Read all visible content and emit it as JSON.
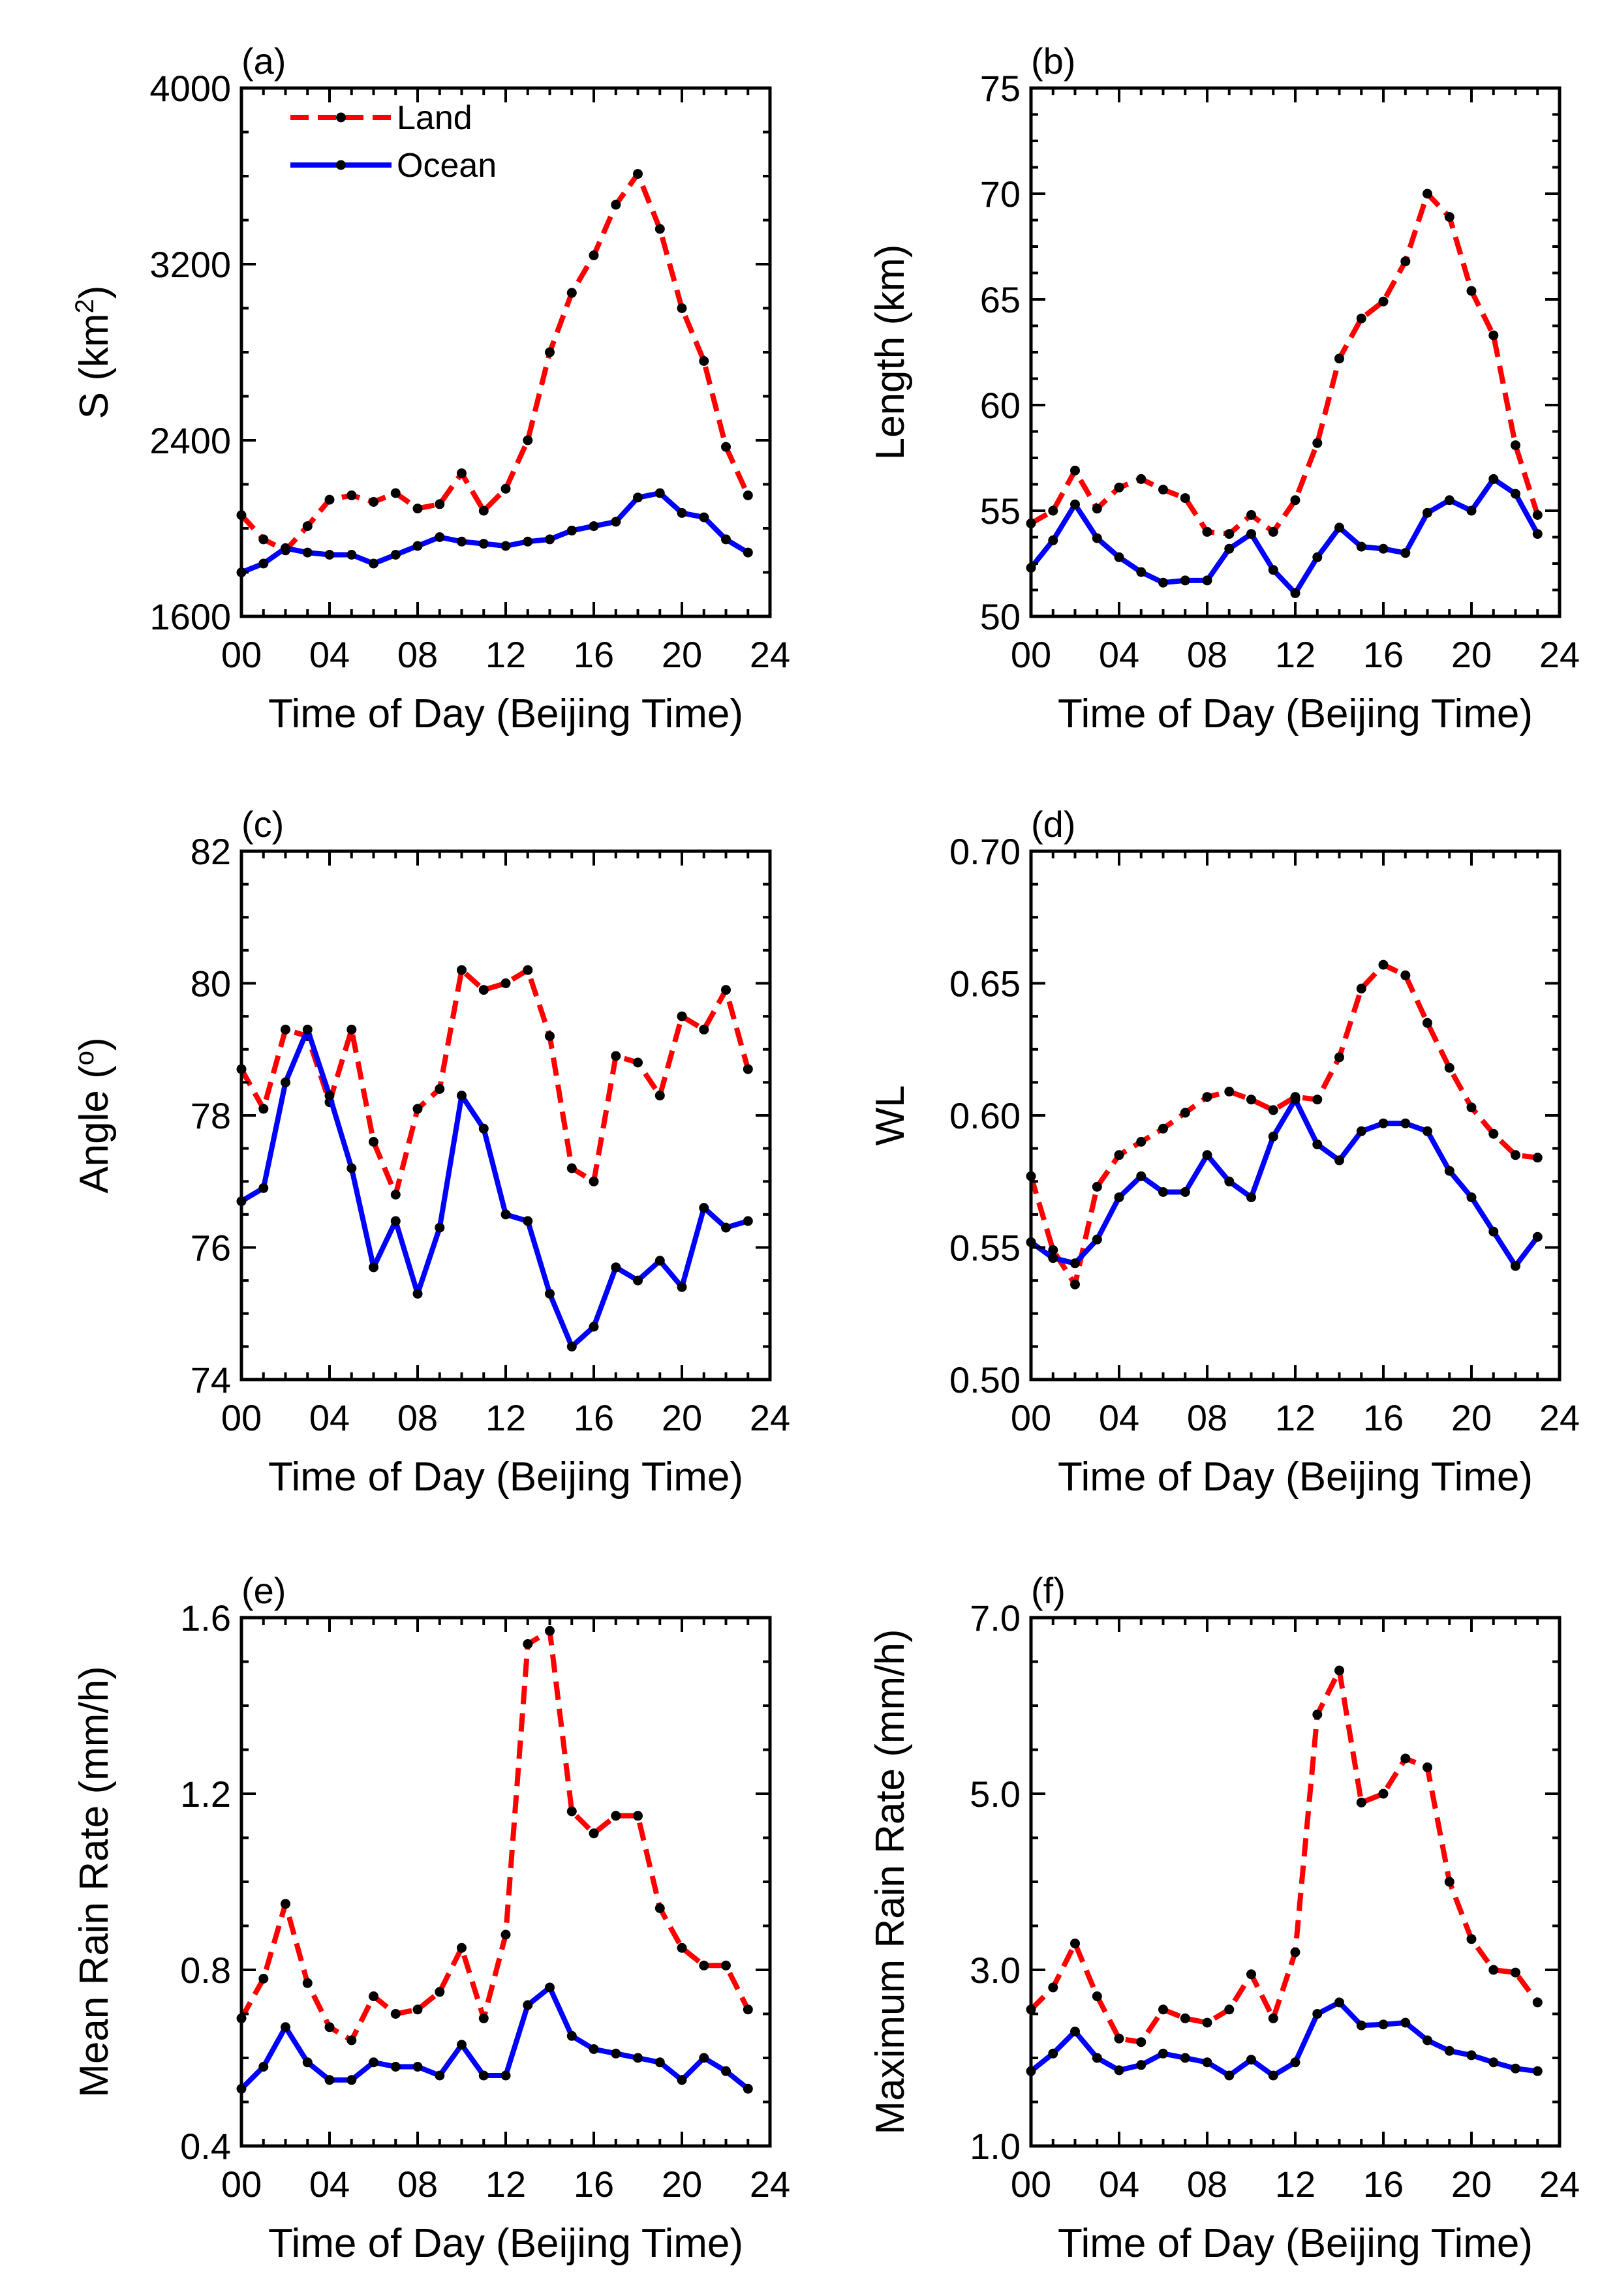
{
  "colors": {
    "land": "#ff0000",
    "ocean": "#0000ff",
    "marker": "#000000"
  },
  "legend": {
    "land": "Land",
    "ocean": "Ocean"
  },
  "chart_data": [
    {
      "id": "a",
      "type": "line",
      "panel_label": "(a)",
      "title": "",
      "xlabel": "Time of Day (Beijing Time)",
      "ylabel": "S (km²)",
      "ylabel_main": "S (km",
      "ylabel_sup": "2",
      "ylabel_end": ")",
      "xlim": [
        0,
        24
      ],
      "ylim": [
        1600,
        4000
      ],
      "xticks": [
        0,
        4,
        8,
        12,
        16,
        20,
        24
      ],
      "xtick_labels": [
        "00",
        "04",
        "08",
        "12",
        "16",
        "20",
        "24"
      ],
      "yticks": [
        1600,
        2400,
        3200,
        4000
      ],
      "ytick_labels": [
        "1600",
        "2400",
        "3200",
        "4000"
      ],
      "x": [
        0,
        1,
        2,
        3,
        4,
        5,
        6,
        7,
        8,
        9,
        10,
        11,
        12,
        13,
        14,
        15,
        16,
        17,
        18,
        19,
        20,
        21,
        22,
        23
      ],
      "series": [
        {
          "name": "Land",
          "values": [
            2060,
            1950,
            1900,
            2010,
            2130,
            2150,
            2120,
            2160,
            2090,
            2110,
            2250,
            2080,
            2180,
            2400,
            2800,
            3070,
            3240,
            3470,
            3610,
            3360,
            3000,
            2760,
            2370,
            2150
          ]
        },
        {
          "name": "Ocean",
          "values": [
            1800,
            1840,
            1910,
            1890,
            1880,
            1880,
            1840,
            1880,
            1920,
            1960,
            1940,
            1930,
            1920,
            1940,
            1950,
            1990,
            2010,
            2030,
            2140,
            2160,
            2070,
            2050,
            1950,
            1890
          ]
        }
      ],
      "legend_position": "top-left"
    },
    {
      "id": "b",
      "type": "line",
      "panel_label": "(b)",
      "title": "",
      "xlabel": "Time of Day (Beijing Time)",
      "ylabel": "Length (km)",
      "xlim": [
        0,
        24
      ],
      "ylim": [
        50,
        75
      ],
      "xticks": [
        0,
        4,
        8,
        12,
        16,
        20,
        24
      ],
      "xtick_labels": [
        "00",
        "04",
        "08",
        "12",
        "16",
        "20",
        "24"
      ],
      "yticks": [
        50,
        55,
        60,
        65,
        70,
        75
      ],
      "ytick_labels": [
        "50",
        "55",
        "60",
        "65",
        "70",
        "75"
      ],
      "x": [
        0,
        1,
        2,
        3,
        4,
        5,
        6,
        7,
        8,
        9,
        10,
        11,
        12,
        13,
        14,
        15,
        16,
        17,
        18,
        19,
        20,
        21,
        22,
        23
      ],
      "series": [
        {
          "name": "Land",
          "values": [
            54.4,
            55.0,
            56.9,
            55.1,
            56.1,
            56.5,
            56.0,
            55.6,
            54.0,
            53.9,
            54.8,
            54.0,
            55.5,
            58.2,
            62.2,
            64.1,
            64.9,
            66.8,
            70.0,
            68.9,
            65.4,
            63.3,
            58.1,
            54.8
          ]
        },
        {
          "name": "Ocean",
          "values": [
            52.3,
            53.6,
            55.3,
            53.7,
            52.8,
            52.1,
            51.6,
            51.7,
            51.7,
            53.2,
            53.9,
            52.2,
            51.1,
            52.8,
            54.2,
            53.3,
            53.2,
            53.0,
            54.9,
            55.5,
            55.0,
            56.5,
            55.8,
            53.9
          ]
        }
      ]
    },
    {
      "id": "c",
      "type": "line",
      "panel_label": "(c)",
      "title": "",
      "xlabel": "Time of Day (Beijing Time)",
      "ylabel": "Angle (°)",
      "ylabel_main": "Angle (",
      "ylabel_sup": "o",
      "ylabel_end": ")",
      "xlim": [
        0,
        24
      ],
      "ylim": [
        74,
        82
      ],
      "xticks": [
        0,
        4,
        8,
        12,
        16,
        20,
        24
      ],
      "xtick_labels": [
        "00",
        "04",
        "08",
        "12",
        "16",
        "20",
        "24"
      ],
      "yticks": [
        74,
        76,
        78,
        80,
        82
      ],
      "ytick_labels": [
        "74",
        "76",
        "78",
        "80",
        "82"
      ],
      "x": [
        0,
        1,
        2,
        3,
        4,
        5,
        6,
        7,
        8,
        9,
        10,
        11,
        12,
        13,
        14,
        15,
        16,
        17,
        18,
        19,
        20,
        21,
        22,
        23
      ],
      "series": [
        {
          "name": "Land",
          "values": [
            78.7,
            78.1,
            79.3,
            79.2,
            78.2,
            79.3,
            77.6,
            76.8,
            78.1,
            78.4,
            80.2,
            79.9,
            80.0,
            80.2,
            79.2,
            77.2,
            77.0,
            78.9,
            78.8,
            78.3,
            79.5,
            79.3,
            79.9,
            78.7
          ]
        },
        {
          "name": "Ocean",
          "values": [
            76.7,
            76.9,
            78.5,
            79.3,
            78.3,
            77.2,
            75.7,
            76.4,
            75.3,
            76.3,
            78.3,
            77.8,
            76.5,
            76.4,
            75.3,
            74.5,
            74.8,
            75.7,
            75.5,
            75.8,
            75.4,
            76.6,
            76.3,
            76.4
          ]
        }
      ]
    },
    {
      "id": "d",
      "type": "line",
      "panel_label": "(d)",
      "title": "",
      "xlabel": "Time of Day (Beijing Time)",
      "ylabel": "WL",
      "xlim": [
        0,
        24
      ],
      "ylim": [
        0.5,
        0.7
      ],
      "xticks": [
        0,
        4,
        8,
        12,
        16,
        20,
        24
      ],
      "xtick_labels": [
        "00",
        "04",
        "08",
        "12",
        "16",
        "20",
        "24"
      ],
      "yticks": [
        0.5,
        0.55,
        0.6,
        0.65,
        0.7
      ],
      "ytick_labels": [
        "0.50",
        "0.55",
        "0.60",
        "0.65",
        "0.70"
      ],
      "x": [
        0,
        1,
        2,
        3,
        4,
        5,
        6,
        7,
        8,
        9,
        10,
        11,
        12,
        13,
        14,
        15,
        16,
        17,
        18,
        19,
        20,
        21,
        22,
        23
      ],
      "series": [
        {
          "name": "Land",
          "values": [
            0.577,
            0.549,
            0.536,
            0.573,
            0.585,
            0.59,
            0.595,
            0.601,
            0.607,
            0.609,
            0.606,
            0.602,
            0.607,
            0.606,
            0.622,
            0.648,
            0.657,
            0.653,
            0.635,
            0.618,
            0.603,
            0.593,
            0.585,
            0.584
          ]
        },
        {
          "name": "Ocean",
          "values": [
            0.552,
            0.546,
            0.544,
            0.553,
            0.569,
            0.577,
            0.571,
            0.571,
            0.585,
            0.575,
            0.569,
            0.592,
            0.606,
            0.589,
            0.583,
            0.594,
            0.597,
            0.597,
            0.594,
            0.579,
            0.569,
            0.556,
            0.543,
            0.554
          ]
        }
      ]
    },
    {
      "id": "e",
      "type": "line",
      "panel_label": "(e)",
      "title": "",
      "xlabel": "Time of Day (Beijing Time)",
      "ylabel": "Mean Rain Rate (mm/h)",
      "xlim": [
        0,
        24
      ],
      "ylim": [
        0.4,
        1.6
      ],
      "xticks": [
        0,
        4,
        8,
        12,
        16,
        20,
        24
      ],
      "xtick_labels": [
        "00",
        "04",
        "08",
        "12",
        "16",
        "20",
        "24"
      ],
      "yticks": [
        0.4,
        0.8,
        1.2,
        1.6
      ],
      "ytick_labels": [
        "0.4",
        "0.8",
        "1.2",
        "1.6"
      ],
      "x": [
        0,
        1,
        2,
        3,
        4,
        5,
        6,
        7,
        8,
        9,
        10,
        11,
        12,
        13,
        14,
        15,
        16,
        17,
        18,
        19,
        20,
        21,
        22,
        23
      ],
      "series": [
        {
          "name": "Land",
          "values": [
            0.69,
            0.78,
            0.95,
            0.77,
            0.67,
            0.64,
            0.74,
            0.7,
            0.71,
            0.75,
            0.85,
            0.69,
            0.88,
            1.54,
            1.57,
            1.16,
            1.11,
            1.15,
            1.15,
            0.94,
            0.85,
            0.81,
            0.81,
            0.71
          ]
        },
        {
          "name": "Ocean",
          "values": [
            0.53,
            0.58,
            0.67,
            0.59,
            0.55,
            0.55,
            0.59,
            0.58,
            0.58,
            0.56,
            0.63,
            0.56,
            0.56,
            0.72,
            0.76,
            0.65,
            0.62,
            0.61,
            0.6,
            0.59,
            0.55,
            0.6,
            0.57,
            0.53
          ]
        }
      ]
    },
    {
      "id": "f",
      "type": "line",
      "panel_label": "(f)",
      "title": "",
      "xlabel": "Time of Day (Beijing Time)",
      "ylabel": "Maximum Rain Rate (mm/h)",
      "xlim": [
        0,
        24
      ],
      "ylim": [
        1.0,
        7.0
      ],
      "xticks": [
        0,
        4,
        8,
        12,
        16,
        20,
        24
      ],
      "xtick_labels": [
        "00",
        "04",
        "08",
        "12",
        "16",
        "20",
        "24"
      ],
      "yticks": [
        1.0,
        3.0,
        5.0,
        7.0
      ],
      "ytick_labels": [
        "1.0",
        "3.0",
        "5.0",
        "7.0"
      ],
      "x": [
        0,
        1,
        2,
        3,
        4,
        5,
        6,
        7,
        8,
        9,
        10,
        11,
        12,
        13,
        14,
        15,
        16,
        17,
        18,
        19,
        20,
        21,
        22,
        23
      ],
      "series": [
        {
          "name": "Land",
          "values": [
            2.55,
            2.8,
            3.3,
            2.7,
            2.22,
            2.18,
            2.55,
            2.45,
            2.4,
            2.55,
            2.95,
            2.45,
            3.2,
            5.9,
            6.4,
            4.9,
            5.0,
            5.4,
            5.3,
            4.0,
            3.35,
            3.0,
            2.97,
            2.63
          ]
        },
        {
          "name": "Ocean",
          "values": [
            1.85,
            2.05,
            2.3,
            2.0,
            1.86,
            1.92,
            2.05,
            2.0,
            1.95,
            1.8,
            1.98,
            1.8,
            1.95,
            2.5,
            2.63,
            2.37,
            2.38,
            2.4,
            2.2,
            2.08,
            2.03,
            1.95,
            1.88,
            1.85
          ]
        }
      ]
    }
  ]
}
